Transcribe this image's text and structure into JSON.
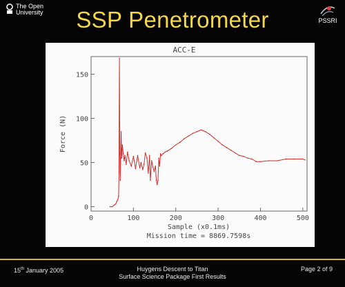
{
  "slide": {
    "title": "SSP Penetrometer",
    "logo_left": "The Open University",
    "logo_right": "PSSRI",
    "footer_date_day": "15",
    "footer_date_suffix": "th",
    "footer_date_rest": " January 2005",
    "footer_center_line1": "Huygens Descent to Titan",
    "footer_center_line2": "Surface Science Package First Results",
    "footer_right": "Page 2 of 9"
  },
  "colors": {
    "background": "#050505",
    "title": "#f4d64a",
    "panel": "#fbfbfb",
    "series": "#d22c2c",
    "axes": "#555555",
    "footer_rule": "#d8b32e"
  },
  "chart_data": {
    "type": "line",
    "title": "ACC-E",
    "xlabel": "Sample (x0.1ms)",
    "ylabel": "Force (N)",
    "annotation": "Mission time = 8869.7598s",
    "xlim": [
      0,
      510
    ],
    "ylim": [
      -5,
      170
    ],
    "x_ticks": [
      0,
      100,
      200,
      300,
      400,
      500
    ],
    "y_ticks": [
      0,
      50,
      100,
      150
    ],
    "grid": false,
    "series": [
      {
        "x": [
          45,
          50,
          55,
          58,
          61,
          63,
          65,
          66,
          67,
          68,
          69,
          70,
          71,
          72,
          74,
          76,
          78,
          80,
          83,
          86,
          90,
          95,
          100,
          105,
          110,
          115,
          118,
          122,
          125,
          128,
          132,
          135,
          138,
          140,
          143,
          146,
          149,
          152,
          154,
          156,
          158,
          160,
          162,
          164,
          166,
          170,
          175,
          180,
          190,
          200,
          210,
          220,
          230,
          240,
          250,
          255,
          260,
          265,
          270,
          280,
          290,
          300,
          310,
          320,
          330,
          340,
          350,
          360,
          370,
          380,
          390,
          400,
          420,
          440,
          460,
          480,
          500,
          505
        ],
        "y": [
          0,
          0,
          2,
          3,
          6,
          8,
          12,
          40,
          168,
          60,
          30,
          60,
          85,
          55,
          70,
          60,
          52,
          58,
          48,
          62,
          52,
          46,
          57,
          43,
          58,
          44,
          50,
          42,
          48,
          61,
          55,
          38,
          58,
          30,
          52,
          45,
          40,
          46,
          30,
          25,
          30,
          55,
          46,
          60,
          58,
          60,
          62,
          63,
          66,
          70,
          73,
          77,
          80,
          83,
          85,
          86,
          87,
          86,
          85,
          82,
          78,
          74,
          70,
          67,
          64,
          61,
          58,
          57,
          55,
          54,
          51,
          51,
          52,
          52,
          54,
          54,
          54,
          53
        ]
      }
    ]
  }
}
